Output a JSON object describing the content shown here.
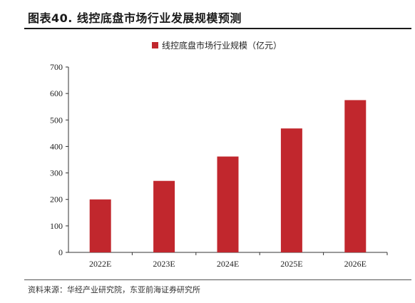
{
  "figure": {
    "title": "图表40.  线控底盘市场行业发展规模预测",
    "source": "资料来源：华经产业研究院，东亚前海证券研究所"
  },
  "chart_data": {
    "type": "bar",
    "categories": [
      "2022E",
      "2023E",
      "2024E",
      "2025E",
      "2026E"
    ],
    "series": [
      {
        "name": "线控底盘市场行业规模（亿元）",
        "values": [
          200,
          270,
          362,
          468,
          575
        ]
      }
    ],
    "ylim": [
      0,
      700
    ],
    "yticks": [
      0,
      100,
      200,
      300,
      400,
      500,
      600,
      700
    ],
    "legend_position": "top-center",
    "grid": false,
    "bar_color": "#c1272d"
  }
}
